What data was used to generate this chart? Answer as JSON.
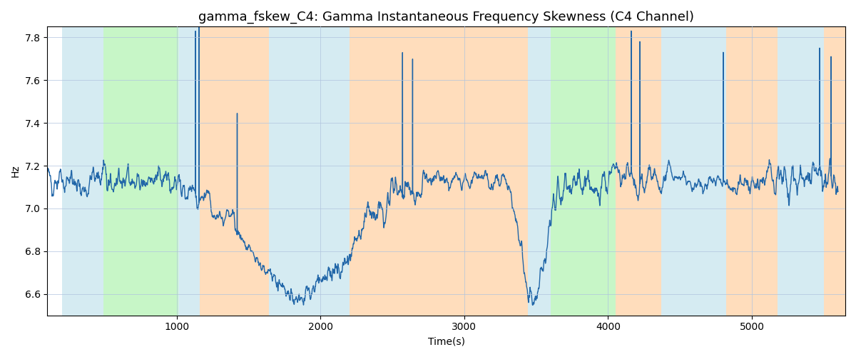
{
  "title": "gamma_fskew_C4: Gamma Instantaneous Frequency Skewness (C4 Channel)",
  "xlabel": "Time(s)",
  "ylabel": "Hz",
  "ylim": [
    6.5,
    7.85
  ],
  "xlim": [
    100,
    5650
  ],
  "line_color": "#2166a8",
  "line_width": 1.0,
  "bands": [
    {
      "start": 200,
      "end": 490,
      "color": "#add8e6",
      "alpha": 0.5
    },
    {
      "start": 490,
      "end": 1010,
      "color": "#90ee90",
      "alpha": 0.5
    },
    {
      "start": 1010,
      "end": 1160,
      "color": "#add8e6",
      "alpha": 0.5
    },
    {
      "start": 1160,
      "end": 1640,
      "color": "#ffa040",
      "alpha": 0.35
    },
    {
      "start": 1640,
      "end": 2200,
      "color": "#add8e6",
      "alpha": 0.5
    },
    {
      "start": 2200,
      "end": 3440,
      "color": "#ffa040",
      "alpha": 0.35
    },
    {
      "start": 3440,
      "end": 3600,
      "color": "#add8e6",
      "alpha": 0.5
    },
    {
      "start": 3600,
      "end": 4050,
      "color": "#90ee90",
      "alpha": 0.5
    },
    {
      "start": 4050,
      "end": 4370,
      "color": "#ffa040",
      "alpha": 0.35
    },
    {
      "start": 4370,
      "end": 4820,
      "color": "#add8e6",
      "alpha": 0.5
    },
    {
      "start": 4820,
      "end": 5180,
      "color": "#ffa040",
      "alpha": 0.35
    },
    {
      "start": 5180,
      "end": 5500,
      "color": "#add8e6",
      "alpha": 0.5
    },
    {
      "start": 5500,
      "end": 5650,
      "color": "#ffa040",
      "alpha": 0.35
    }
  ],
  "seed": 12345,
  "n_points": 5500,
  "x_start": 100,
  "x_end": 5600,
  "mean_val": 7.13,
  "title_fontsize": 13
}
